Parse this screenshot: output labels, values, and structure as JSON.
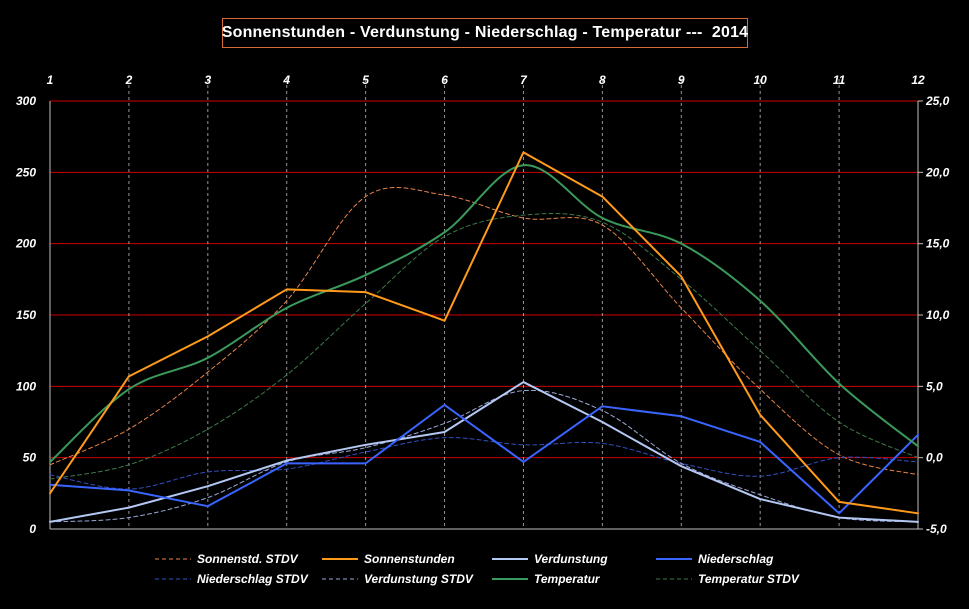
{
  "chart_data": {
    "type": "line",
    "title": "Sonnenstunden - Verdunstung - Niederschlag - Temperatur ---  2014",
    "background": "#000000",
    "x": [
      1,
      2,
      3,
      4,
      5,
      6,
      7,
      8,
      9,
      10,
      11,
      12
    ],
    "x_tick_labels": [
      "1",
      "2",
      "3",
      "4",
      "5",
      "6",
      "7",
      "8",
      "9",
      "10",
      "11",
      "12"
    ],
    "y_left": {
      "lim": [
        0,
        300
      ],
      "ticks": [
        0,
        50,
        100,
        150,
        200,
        250,
        300
      ],
      "tick_labels": [
        "0",
        "50",
        "100",
        "150",
        "200",
        "250",
        "300"
      ]
    },
    "y_right": {
      "lim": [
        -5,
        25
      ],
      "ticks": [
        -5,
        0,
        5,
        10,
        15,
        20,
        25
      ],
      "tick_labels": [
        "-5,0",
        "0,0",
        "5,0",
        "10,0",
        "15,0",
        "20,0",
        "25,0"
      ]
    },
    "grid": {
      "horizontal": true,
      "horizontal_color": "#cc0000",
      "vertical": "dashed",
      "vertical_color": "#c8c8c8"
    },
    "legend_position": "bottom",
    "series": [
      {
        "name": "Sonnenstd. STDV",
        "axis": "left",
        "style": "dashed",
        "color": "#e8844a",
        "width": 1,
        "values": [
          45,
          70,
          110,
          160,
          233,
          234,
          218,
          213,
          155,
          98,
          52,
          38
        ]
      },
      {
        "name": "Sonnenstunden",
        "axis": "left",
        "style": "solid",
        "color": "#ff9a1a",
        "width": 2,
        "values": [
          25,
          107,
          135,
          168,
          166,
          146,
          264,
          233,
          177,
          80,
          19,
          11
        ]
      },
      {
        "name": "Verdunstung",
        "axis": "left",
        "style": "solid",
        "color": "#b4c8f4",
        "width": 2,
        "values": [
          5,
          15,
          30,
          48,
          59,
          68,
          103,
          75,
          44,
          21,
          8,
          5
        ]
      },
      {
        "name": "Niederschlag",
        "axis": "left",
        "style": "solid",
        "color": "#3a64ff",
        "width": 2,
        "values": [
          31,
          27,
          16,
          46,
          46,
          87,
          47,
          86,
          79,
          61,
          11,
          66
        ]
      },
      {
        "name": "Niederschlag STDV",
        "axis": "left",
        "style": "dashed",
        "color": "#3050c0",
        "width": 1,
        "values": [
          38,
          28,
          40,
          42,
          54,
          64,
          59,
          60,
          46,
          37,
          50,
          47
        ]
      },
      {
        "name": "Verdunstung STDV",
        "axis": "left",
        "style": "dashed",
        "color": "#9aaad8",
        "width": 1,
        "values": [
          5,
          8,
          22,
          47,
          57,
          74,
          97,
          83,
          46,
          24,
          8,
          5
        ]
      },
      {
        "name": "Temperatur",
        "axis": "right",
        "style": "solid",
        "color": "#3a9a5c",
        "width": 2,
        "values": [
          -0.3,
          4.8,
          7.0,
          10.5,
          12.8,
          15.8,
          20.5,
          16.8,
          15.0,
          11.0,
          5.2,
          0.8
        ]
      },
      {
        "name": "Temperatur STDV",
        "axis": "right",
        "style": "dashed",
        "color": "#3c7a4a",
        "width": 1,
        "values": [
          -1.5,
          -0.5,
          2.0,
          5.8,
          10.8,
          15.5,
          17.0,
          16.5,
          12.5,
          7.5,
          2.5,
          0.0
        ]
      }
    ]
  }
}
